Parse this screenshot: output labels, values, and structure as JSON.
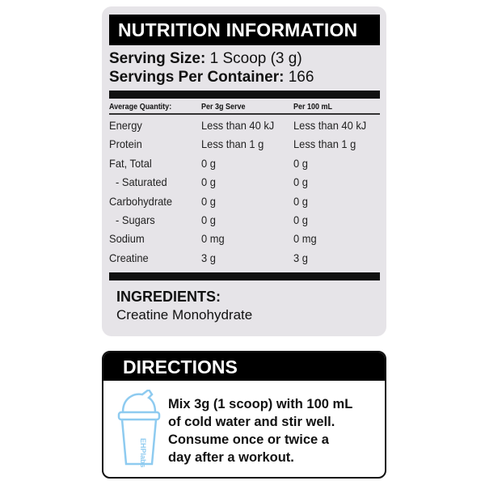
{
  "nutrition": {
    "title": "NUTRITION INFORMATION",
    "serving_size_label": "Serving Size:",
    "serving_size_value": "1 Scoop (3 g)",
    "servings_label": "Servings Per Container:",
    "servings_value": "166",
    "columns": [
      "Average Quantity:",
      "Per 3g Serve",
      "Per 100 mL"
    ],
    "rows": [
      [
        "Energy",
        "Less than 40 kJ",
        "Less than 40 kJ"
      ],
      [
        "Protein",
        "Less than 1 g",
        "Less than 1 g"
      ],
      [
        "Fat, Total",
        "0 g",
        "0 g"
      ],
      [
        "- Saturated",
        "0 g",
        "0 g"
      ],
      [
        "Carbohydrate",
        "0 g",
        "0 g"
      ],
      [
        "- Sugars",
        "0 g",
        "0 g"
      ],
      [
        "Sodium",
        "0 mg",
        "0 mg"
      ],
      [
        "Creatine",
        "3 g",
        "3 g"
      ]
    ]
  },
  "ingredients": {
    "title": "INGREDIENTS:",
    "value": "Creatine Monohydrate"
  },
  "directions": {
    "title": "DIRECTIONS",
    "lines": [
      "Mix 3g (1 scoop) with 100 mL",
      "of cold water and stir well.",
      "Consume once or twice a",
      "day after a workout."
    ],
    "icon": "shaker-cup-icon",
    "logo_text": "EHPlabs",
    "icon_color": "#8ecbf0"
  }
}
